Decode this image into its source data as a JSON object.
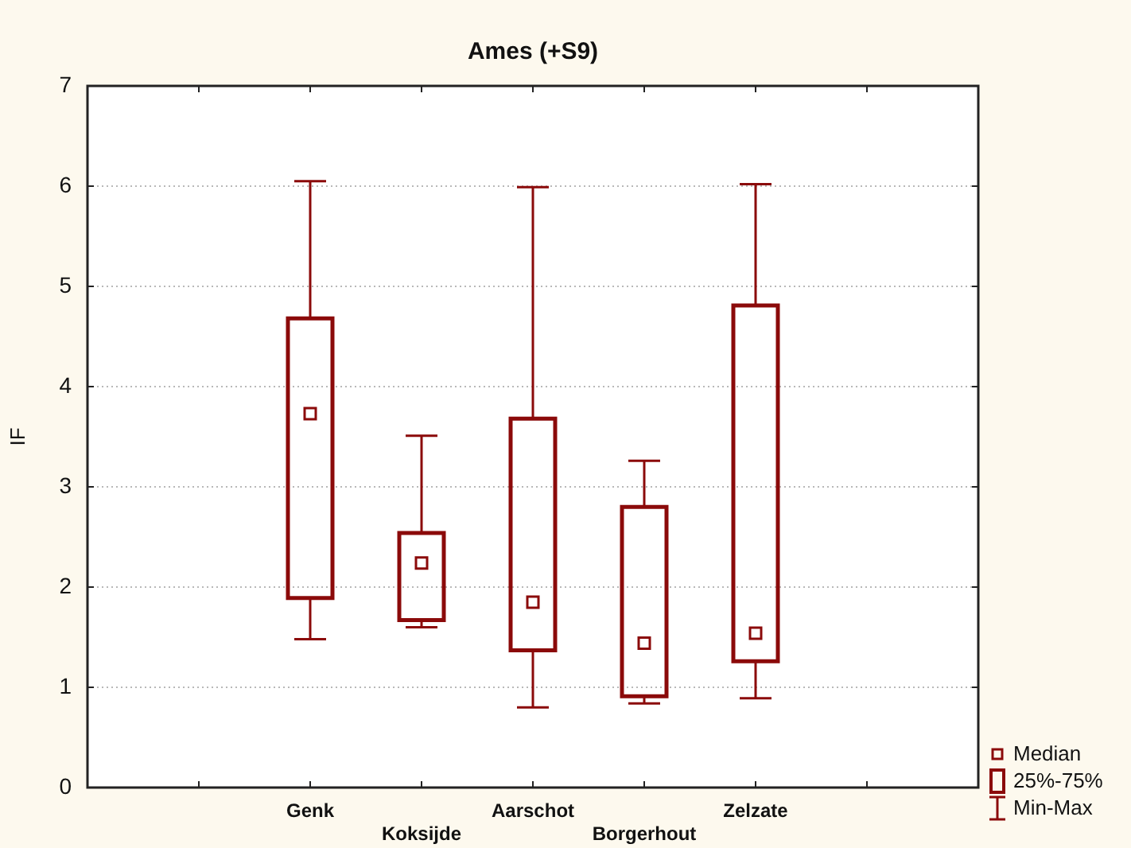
{
  "chart_data": {
    "type": "box",
    "title": "Ames (+S9)",
    "ylabel": "IF",
    "categories": [
      null,
      null,
      "Genk",
      "Koksijde",
      "Aarschot",
      "Borgerhout",
      "Zelzate",
      null,
      null
    ],
    "boxes": [
      null,
      null,
      {
        "low": 1.48,
        "q1": 1.89,
        "median": 3.73,
        "q3": 4.68,
        "high": 6.05
      },
      {
        "low": 1.6,
        "q1": 1.67,
        "median": 2.24,
        "q3": 2.54,
        "high": 3.51
      },
      {
        "low": 0.8,
        "q1": 1.37,
        "median": 1.85,
        "q3": 3.68,
        "high": 5.99
      },
      {
        "low": 0.84,
        "q1": 0.91,
        "median": 1.44,
        "q3": 2.8,
        "high": 3.26
      },
      {
        "low": 0.89,
        "q1": 1.26,
        "median": 1.54,
        "q3": 4.81,
        "high": 6.02
      },
      null,
      null
    ],
    "color": "#8b0a0a",
    "ylim": [
      0,
      7
    ],
    "yticks": [
      0,
      1,
      2,
      3,
      4,
      5,
      6,
      7
    ],
    "grid": "y",
    "annotations": [
      "Median",
      "25%-75%",
      "Min-Max"
    ]
  }
}
